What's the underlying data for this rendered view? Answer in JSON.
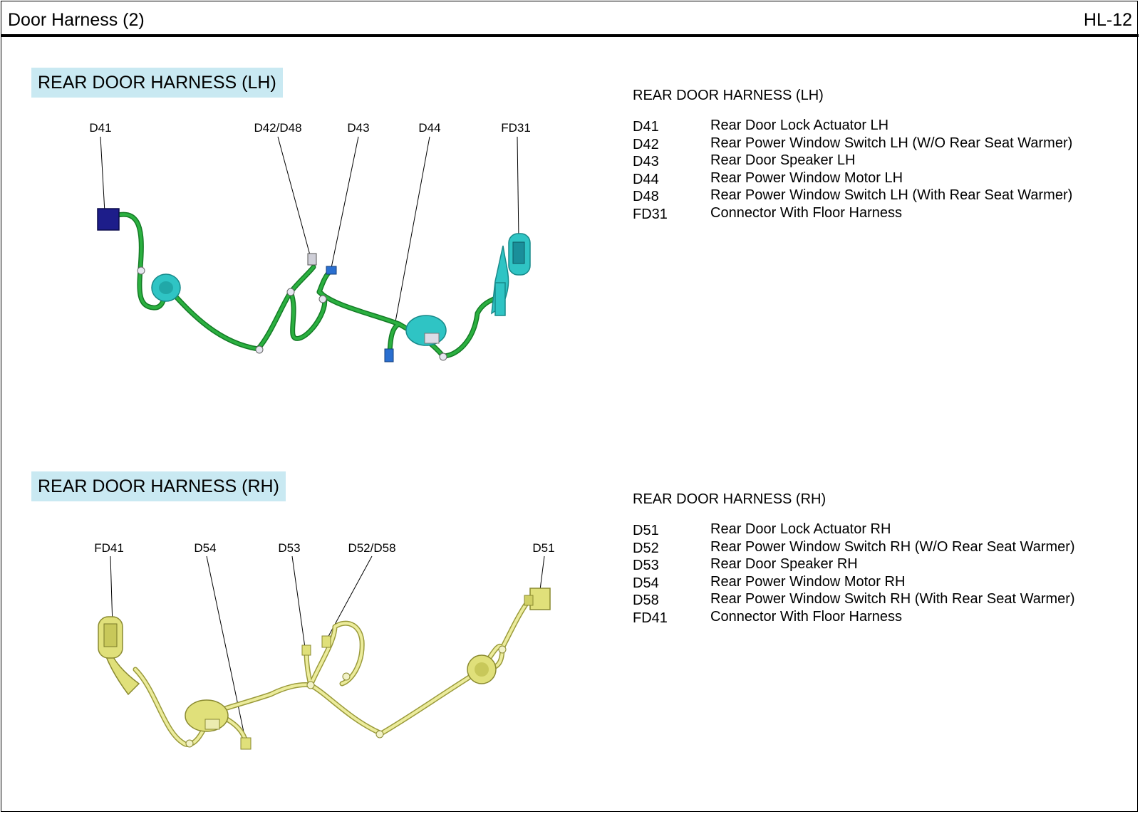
{
  "header": {
    "title": "Door Harness (2)",
    "page_code": "HL-12"
  },
  "sections": [
    {
      "id": "lh",
      "title": "REAR DOOR HARNESS (LH)",
      "harness_color": "#22a63a",
      "grommet_color": "#2fc4c4",
      "callouts": [
        "D41",
        "D42/D48",
        "D43",
        "D44",
        "FD31"
      ],
      "legend_title": "REAR DOOR HARNESS (LH)",
      "legend": [
        {
          "code": "D41",
          "desc": "Rear Door Lock Actuator LH"
        },
        {
          "code": "D42",
          "desc": "Rear Power Window Switch LH (W/O Rear Seat Warmer)"
        },
        {
          "code": "D43",
          "desc": "Rear Door Speaker LH"
        },
        {
          "code": "D44",
          "desc": "Rear Power Window Motor LH"
        },
        {
          "code": "D48",
          "desc": "Rear Power Window Switch LH (With Rear Seat Warmer)"
        },
        {
          "code": "FD31",
          "desc": "Connector With Floor Harness"
        }
      ]
    },
    {
      "id": "rh",
      "title": "REAR DOOR HARNESS (RH)",
      "harness_color": "#e4e48a",
      "grommet_color": "#d8d86a",
      "callouts": [
        "FD41",
        "D54",
        "D53",
        "D52/D58",
        "D51"
      ],
      "legend_title": "REAR DOOR HARNESS (RH)",
      "legend": [
        {
          "code": "D51",
          "desc": "Rear Door Lock Actuator RH"
        },
        {
          "code": "D52",
          "desc": "Rear Power Window Switch RH (W/O Rear Seat Warmer)"
        },
        {
          "code": "D53",
          "desc": "Rear Door Speaker RH"
        },
        {
          "code": "D54",
          "desc": "Rear Power Window Motor RH"
        },
        {
          "code": "D58",
          "desc": "Rear Power Window Switch RH (With Rear Seat Warmer)"
        },
        {
          "code": "FD41",
          "desc": "Connector With Floor Harness"
        }
      ]
    }
  ]
}
